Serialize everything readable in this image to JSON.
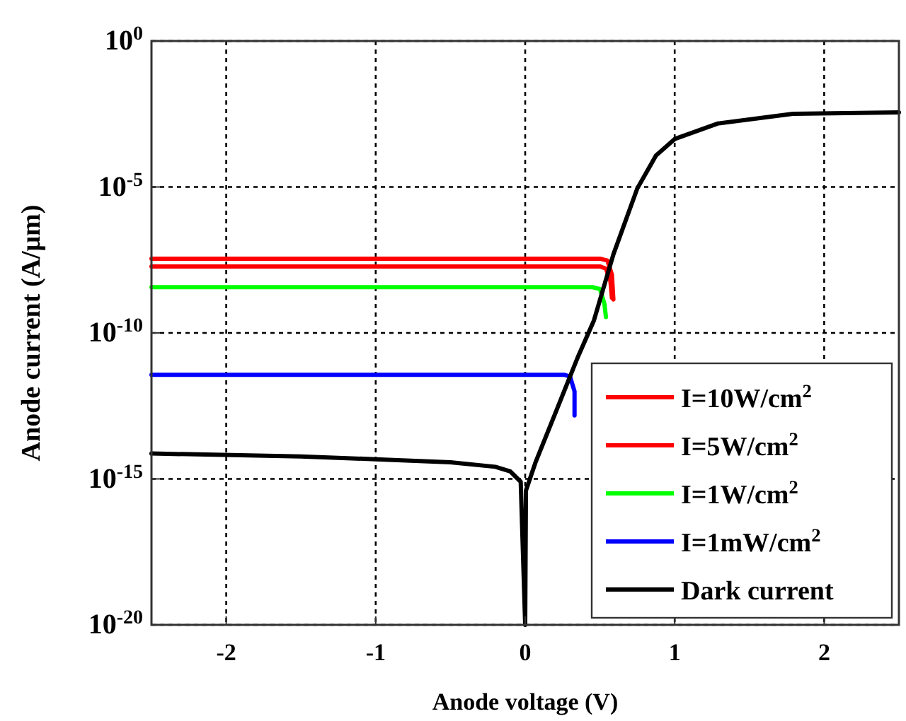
{
  "chart_data": {
    "type": "line",
    "xlabel": "Anode voltage (V)",
    "ylabel": "Anode current (A/μm)",
    "log": "y",
    "grid": true,
    "legend": "bottom right",
    "line_style": "solid",
    "xlim": [
      -2.5,
      2.5
    ],
    "xticks": [
      -2,
      -1,
      0,
      1,
      2
    ],
    "ylim": [
      1e-20,
      1
    ],
    "yticks": [
      {
        "value": 1e-20,
        "label": "10$^{-20}$"
      },
      {
        "value": 1e-15,
        "label": "10$^{-15}$"
      },
      {
        "value": 1e-10,
        "label": "10$^{-10}$"
      },
      {
        "value": 1e-05,
        "label": "10$^{-5}$"
      },
      {
        "value": 1,
        "label": "10$^{0}$"
      }
    ],
    "series": [
      {
        "name": "I=10W/cm$^{2}$",
        "color": "#ff0000",
        "x": [
          -2.5,
          0.5,
          0.55,
          0.58,
          0.59
        ],
        "values": [
          3.5e-08,
          3.5e-08,
          3e-08,
          1e-08,
          1.4e-09
        ]
      },
      {
        "name": "I=5W/cm$^{2}$",
        "color": "#ff0000",
        "x": [
          -2.5,
          0.5,
          0.54,
          0.57,
          0.58
        ],
        "values": [
          1.9e-08,
          1.9e-08,
          1.6e-08,
          6e-09,
          1.6e-09
        ]
      },
      {
        "name": "I=1W/cm$^{2}$",
        "color": "#00ff00",
        "x": [
          -2.5,
          0.45,
          0.5,
          0.53,
          0.54
        ],
        "values": [
          3.7e-09,
          3.7e-09,
          3.2e-09,
          1e-09,
          3.5e-10
        ]
      },
      {
        "name": "I=1mW/cm$^{2}$",
        "color": "#0000ff",
        "x": [
          -2.5,
          0.26,
          0.3,
          0.33,
          0.33
        ],
        "values": [
          3.7e-12,
          3.7e-12,
          3.2e-12,
          1e-12,
          1.5e-13
        ]
      },
      {
        "name": "Dark current",
        "color": "#000000",
        "x": [
          -2.5,
          -1.5,
          -1,
          -0.5,
          -0.2,
          -0.1,
          -0.03,
          0,
          0.005,
          0.07,
          0.2,
          0.35,
          0.46,
          0.59,
          0.75,
          0.875,
          1,
          1.29,
          1.79,
          2.5
        ],
        "values": [
          7.4e-15,
          5.9e-15,
          4.7e-15,
          3.7e-15,
          2.6e-15,
          1.8e-15,
          8e-16,
          1e-20,
          4e-16,
          3.8e-15,
          1.7e-13,
          1.4e-11,
          2.7e-10,
          4.9e-08,
          8.9e-06,
          0.00012,
          0.00044,
          0.0015,
          0.0032,
          0.0036
        ]
      }
    ]
  }
}
